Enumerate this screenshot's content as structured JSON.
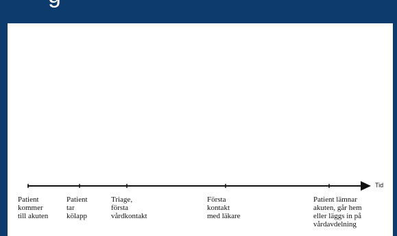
{
  "slide": {
    "title_fragment": "g                                  ",
    "colors": {
      "frame": "#0d3b6e",
      "axis": "#111111"
    }
  },
  "timeline": {
    "axis_label": "Tid",
    "events": [
      {
        "label": "Patient\nkommer\ntill akuten"
      },
      {
        "label": "Patient\ntar\nkölapp"
      },
      {
        "label": "Triage,\nförsta\nvårdkontakt"
      },
      {
        "label": "Första\nkontakt\nmed läkare"
      },
      {
        "label": "Patient lämnar\nakuten, går hem\neller läggs in på\nvårdavdelning"
      }
    ]
  }
}
